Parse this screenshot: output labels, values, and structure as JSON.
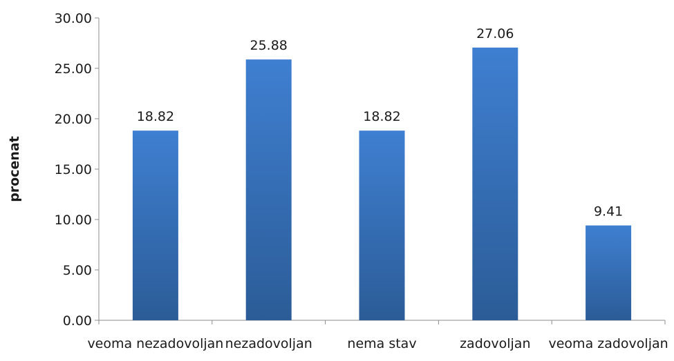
{
  "chart_data": {
    "type": "bar",
    "title": "",
    "xlabel": "",
    "ylabel": "procenat",
    "ylim": [
      0,
      30
    ],
    "yticks": [
      "0.00",
      "5.00",
      "10.00",
      "15.00",
      "20.00",
      "25.00",
      "30.00"
    ],
    "grid": false,
    "legend": "none",
    "categories": [
      "veoma nezadovoljan",
      "nezadovoljan",
      "nema stav",
      "zadovoljan",
      "veoma zadovoljan"
    ],
    "values": [
      18.82,
      25.88,
      18.82,
      27.06,
      9.41
    ],
    "data_labels": [
      "18.82",
      "25.88",
      "18.82",
      "27.06",
      "9.41"
    ],
    "colors": {
      "bar_top": "#3f7fd1",
      "bar_bottom": "#2b5c97",
      "axis": "#8c8c8c"
    }
  }
}
